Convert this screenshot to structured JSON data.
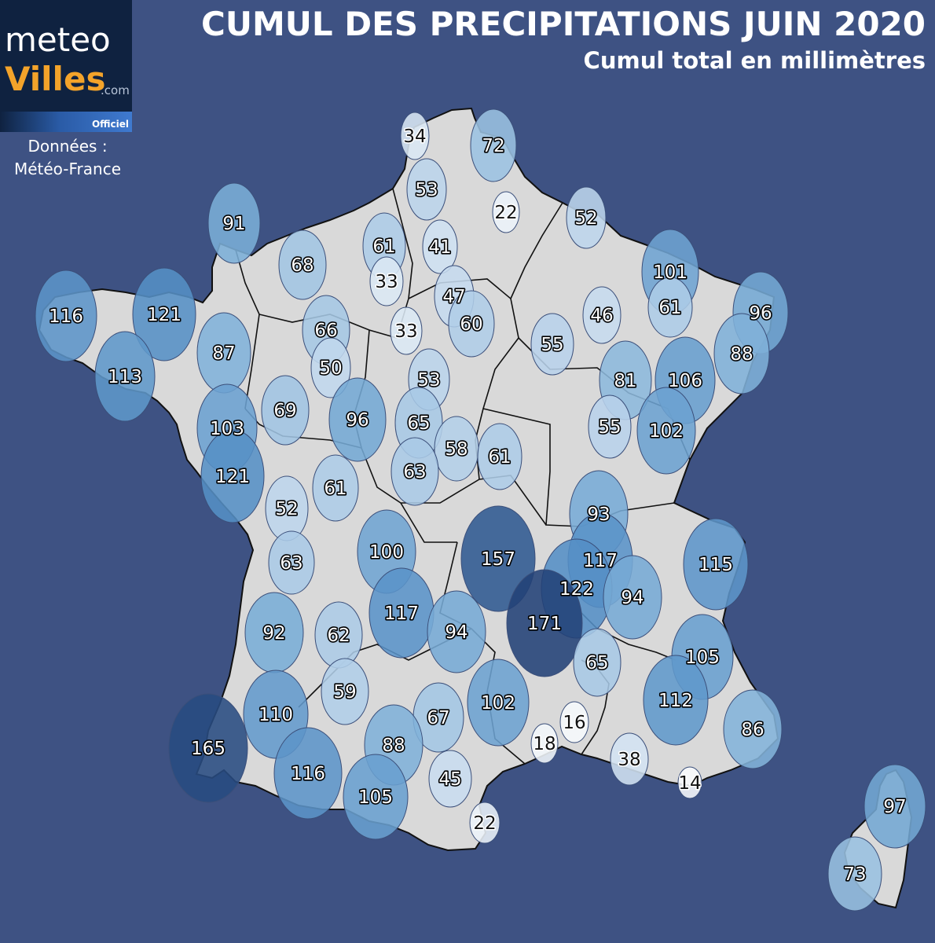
{
  "logo": {
    "meteo": "meteo",
    "villes": "Villes",
    "com": ".com",
    "officiel": "Officiel"
  },
  "source": {
    "line1": "Données :",
    "line2": "Météo-France"
  },
  "header": {
    "title": "CUMUL DES PRECIPITATIONS JUIN 2020",
    "subtitle": "Cumul total en millimètres"
  },
  "colors": {
    "background": "#3e5283",
    "land": "#d9d9d9",
    "border": "#111111",
    "scale_low": "#ffffff",
    "scale_high": "#1e3a6e"
  },
  "stations": [
    {
      "v": "34"
    },
    {
      "v": "72"
    },
    {
      "v": "53"
    },
    {
      "v": "22"
    },
    {
      "v": "52"
    },
    {
      "v": "91"
    },
    {
      "v": "68"
    },
    {
      "v": "61"
    },
    {
      "v": "41"
    },
    {
      "v": "33"
    },
    {
      "v": "47"
    },
    {
      "v": "60"
    },
    {
      "v": "33"
    },
    {
      "v": "101"
    },
    {
      "v": "61"
    },
    {
      "v": "96"
    },
    {
      "v": "46"
    },
    {
      "v": "116"
    },
    {
      "v": "121"
    },
    {
      "v": "66"
    },
    {
      "v": "87"
    },
    {
      "v": "50"
    },
    {
      "v": "55"
    },
    {
      "v": "88"
    },
    {
      "v": "113"
    },
    {
      "v": "53"
    },
    {
      "v": "81"
    },
    {
      "v": "106"
    },
    {
      "v": "69"
    },
    {
      "v": "96"
    },
    {
      "v": "103"
    },
    {
      "v": "65"
    },
    {
      "v": "55"
    },
    {
      "v": "102"
    },
    {
      "v": "58"
    },
    {
      "v": "61"
    },
    {
      "v": "63"
    },
    {
      "v": "121"
    },
    {
      "v": "61"
    },
    {
      "v": "52"
    },
    {
      "v": "93"
    },
    {
      "v": "100"
    },
    {
      "v": "157"
    },
    {
      "v": "117"
    },
    {
      "v": "115"
    },
    {
      "v": "63"
    },
    {
      "v": "122"
    },
    {
      "v": "94"
    },
    {
      "v": "171"
    },
    {
      "v": "117"
    },
    {
      "v": "94"
    },
    {
      "v": "92"
    },
    {
      "v": "62"
    },
    {
      "v": "65"
    },
    {
      "v": "105"
    },
    {
      "v": "59"
    },
    {
      "v": "112"
    },
    {
      "v": "102"
    },
    {
      "v": "110"
    },
    {
      "v": "67"
    },
    {
      "v": "16"
    },
    {
      "v": "86"
    },
    {
      "v": "165"
    },
    {
      "v": "88"
    },
    {
      "v": "18"
    },
    {
      "v": "38"
    },
    {
      "v": "116"
    },
    {
      "v": "45"
    },
    {
      "v": "14"
    },
    {
      "v": "105"
    },
    {
      "v": "22"
    },
    {
      "v": "97"
    },
    {
      "v": "73"
    }
  ]
}
